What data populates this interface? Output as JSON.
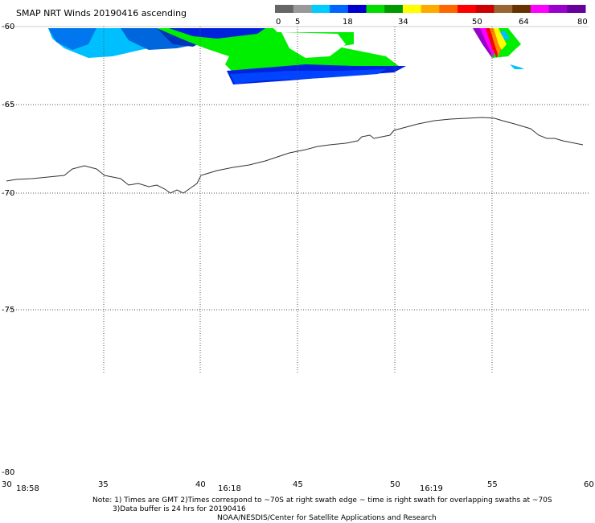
{
  "title": "SMAP NRT Winds 20190416 ascending",
  "colorbar": {
    "labels": [
      "0",
      "5",
      "18",
      "34",
      "50",
      "64",
      "80"
    ],
    "segments": [
      "#666666",
      "#999999",
      "#00ccff",
      "#0066ff",
      "#0000cc",
      "#00dd00",
      "#009900",
      "#ffff00",
      "#ffaa00",
      "#ff6600",
      "#ff0000",
      "#cc0000",
      "#996633",
      "#663300",
      "#ff00ff",
      "#9900cc",
      "#660099"
    ]
  },
  "lat_labels": [
    "-60",
    "-65",
    "-70",
    "-75",
    "-80"
  ],
  "lon_labels": [
    "30",
    "35",
    "40",
    "45",
    "50",
    "55",
    "60"
  ],
  "times": [
    "18:58",
    "16:18",
    "16:19"
  ],
  "notes": {
    "line1": "Note: 1) Times are GMT 2)Times correspond to ~70S at right swath edge ~ time is right swath for overlapping swaths at ~70S",
    "line2": "3)Data buffer is 24 hrs for 20190416",
    "line3": "NOAA/NESDIS/Center for Satellite Applications and Research"
  }
}
